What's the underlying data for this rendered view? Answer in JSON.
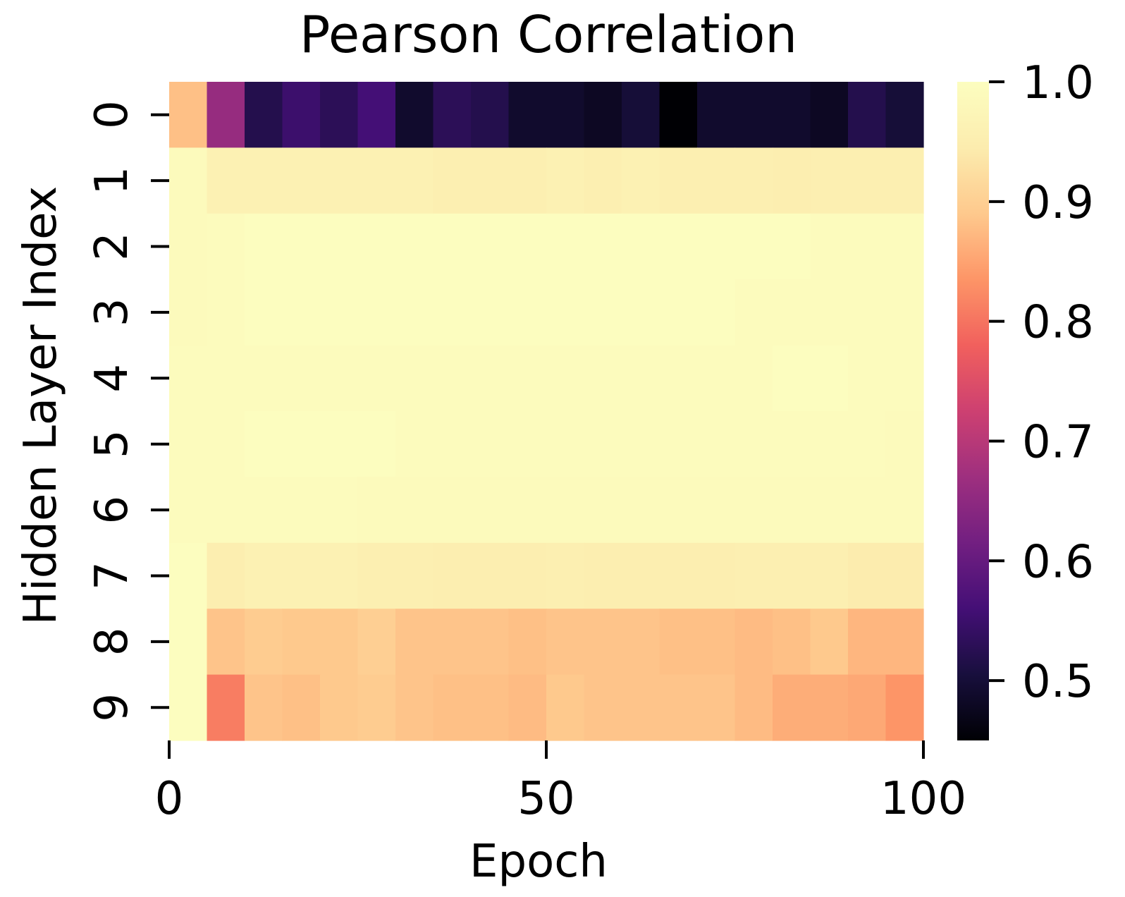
{
  "chart_data": {
    "type": "heatmap",
    "title": "Pearson Correlation",
    "xlabel": "Epoch",
    "ylabel": "Hidden Layer Index",
    "x_ticks": [
      0,
      50,
      100
    ],
    "x_range": [
      0,
      100
    ],
    "y_ticks": [
      0,
      1,
      2,
      3,
      4,
      5,
      6,
      7,
      8,
      9
    ],
    "columns": 20,
    "column_width_epochs": 5,
    "colormap": "magma",
    "colorbar": {
      "vmin": 0.45,
      "vmax": 1.0,
      "ticks": [
        0.5,
        0.6,
        0.7,
        0.8,
        0.9,
        1.0
      ],
      "tick_labels": [
        "0.5",
        "0.6",
        "0.7",
        "0.8",
        "0.9",
        "1.0"
      ]
    },
    "values": [
      [
        0.88,
        0.66,
        0.52,
        0.55,
        0.53,
        0.56,
        0.49,
        0.53,
        0.52,
        0.49,
        0.49,
        0.48,
        0.5,
        0.45,
        0.49,
        0.49,
        0.49,
        0.48,
        0.52,
        0.5
      ],
      [
        0.99,
        0.96,
        0.96,
        0.96,
        0.96,
        0.96,
        0.96,
        0.955,
        0.955,
        0.955,
        0.96,
        0.955,
        0.96,
        0.955,
        0.955,
        0.955,
        0.95,
        0.955,
        0.955,
        0.955
      ],
      [
        0.99,
        0.995,
        1.0,
        1.0,
        1.0,
        1.0,
        1.0,
        1.0,
        1.0,
        1.0,
        1.0,
        1.0,
        1.0,
        1.0,
        1.0,
        1.0,
        1.0,
        0.995,
        0.995,
        0.995
      ],
      [
        0.99,
        0.995,
        1.0,
        1.0,
        1.0,
        1.0,
        1.0,
        1.0,
        1.0,
        1.0,
        1.0,
        1.0,
        1.0,
        1.0,
        1.0,
        0.995,
        0.995,
        0.995,
        0.995,
        0.995
      ],
      [
        0.995,
        0.995,
        0.995,
        0.995,
        0.995,
        0.995,
        0.995,
        0.995,
        0.995,
        0.995,
        0.995,
        0.995,
        0.995,
        0.995,
        0.995,
        0.995,
        1.0,
        1.0,
        0.995,
        0.995
      ],
      [
        0.995,
        0.995,
        1.0,
        1.0,
        1.0,
        1.0,
        0.995,
        0.995,
        0.995,
        0.995,
        0.995,
        0.995,
        0.995,
        0.995,
        0.995,
        0.995,
        0.995,
        0.995,
        0.995,
        0.99
      ],
      [
        0.995,
        0.995,
        0.995,
        0.995,
        0.995,
        0.99,
        0.99,
        0.99,
        0.99,
        0.99,
        0.99,
        0.99,
        0.99,
        0.99,
        0.99,
        0.99,
        0.99,
        0.99,
        0.99,
        0.99
      ],
      [
        1.0,
        0.95,
        0.96,
        0.96,
        0.96,
        0.955,
        0.955,
        0.95,
        0.95,
        0.95,
        0.955,
        0.95,
        0.95,
        0.95,
        0.95,
        0.955,
        0.955,
        0.955,
        0.945,
        0.945
      ],
      [
        1.0,
        0.885,
        0.895,
        0.89,
        0.89,
        0.9,
        0.885,
        0.885,
        0.885,
        0.88,
        0.885,
        0.885,
        0.885,
        0.88,
        0.88,
        0.875,
        0.88,
        0.89,
        0.87,
        0.87
      ],
      [
        1.0,
        0.81,
        0.885,
        0.88,
        0.89,
        0.895,
        0.885,
        0.88,
        0.88,
        0.875,
        0.89,
        0.885,
        0.885,
        0.885,
        0.885,
        0.875,
        0.86,
        0.86,
        0.855,
        0.835
      ]
    ]
  }
}
